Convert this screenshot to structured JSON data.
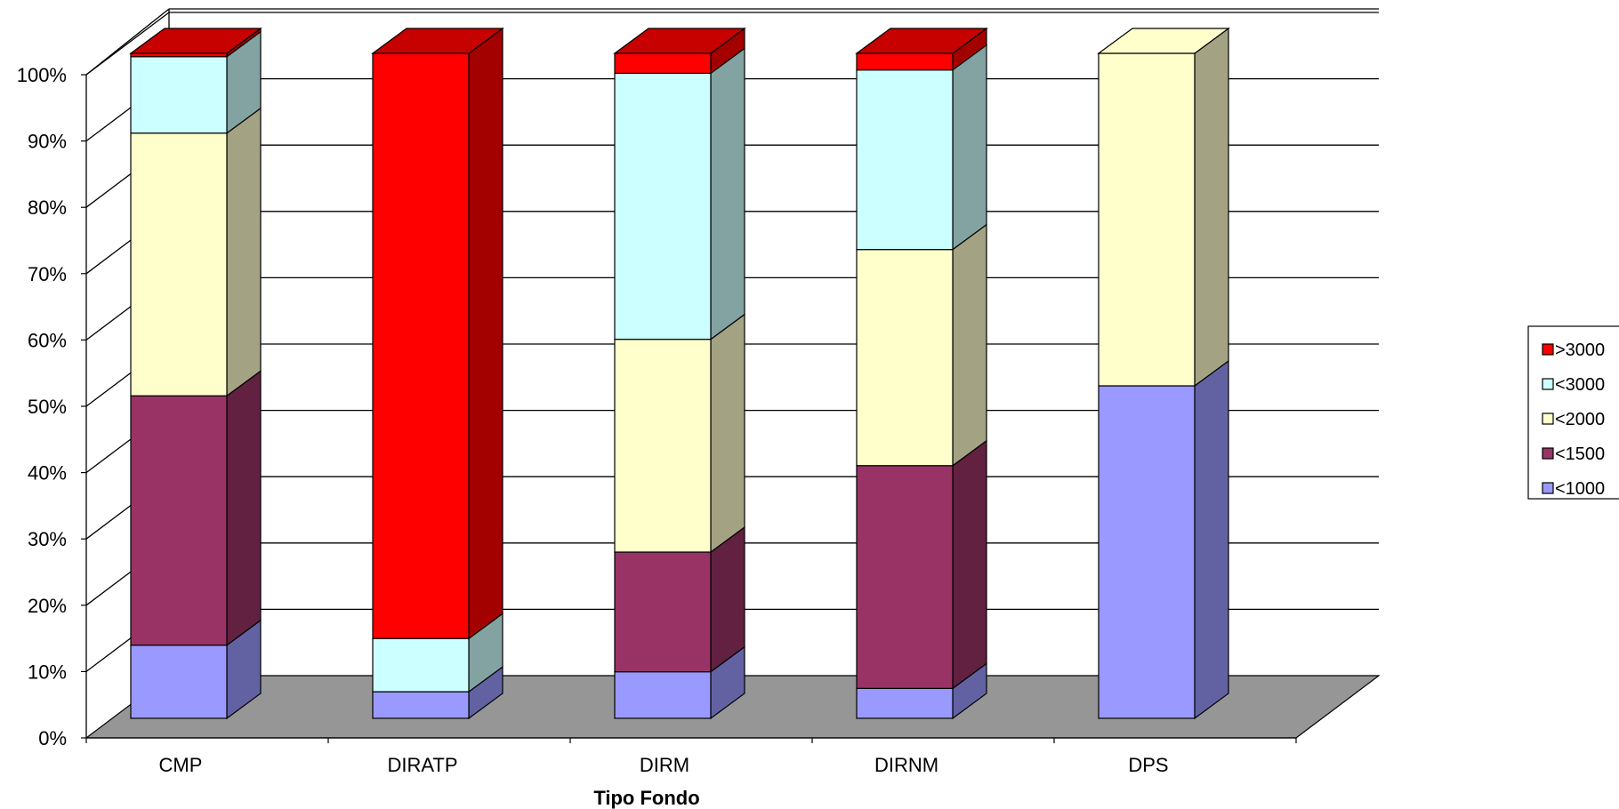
{
  "chart_data": {
    "type": "bar",
    "subtype": "3d-stacked-percent",
    "xlabel": "Tipo Fondo",
    "ylabel": "",
    "ylim": [
      0,
      100
    ],
    "yticks": [
      "0%",
      "10%",
      "20%",
      "30%",
      "40%",
      "50%",
      "60%",
      "70%",
      "80%",
      "90%",
      "100%"
    ],
    "grid": true,
    "legend_position": "right",
    "categories": [
      "CMP",
      "DIRATP",
      "DIRM",
      "DIRNM",
      "DPS"
    ],
    "series": [
      {
        "name": "<1000",
        "color": "#9999FF",
        "values": [
          11,
          4,
          7,
          4.5,
          50
        ]
      },
      {
        "name": "<1500",
        "color": "#993366",
        "values": [
          37.5,
          0,
          18,
          33.5,
          0
        ]
      },
      {
        "name": "<2000",
        "color": "#FFFFCC",
        "values": [
          39.5,
          0,
          32,
          32.5,
          50
        ]
      },
      {
        "name": "<3000",
        "color": "#CCFFFF",
        "values": [
          11.5,
          8,
          40,
          27,
          0
        ]
      },
      {
        "name": ">3000",
        "color": "#FF0000",
        "values": [
          0.5,
          88,
          3,
          2.5,
          0
        ]
      }
    ],
    "colors": {
      "floor": "#969696",
      "background": "#ffffff",
      "grid": "#000000"
    }
  }
}
